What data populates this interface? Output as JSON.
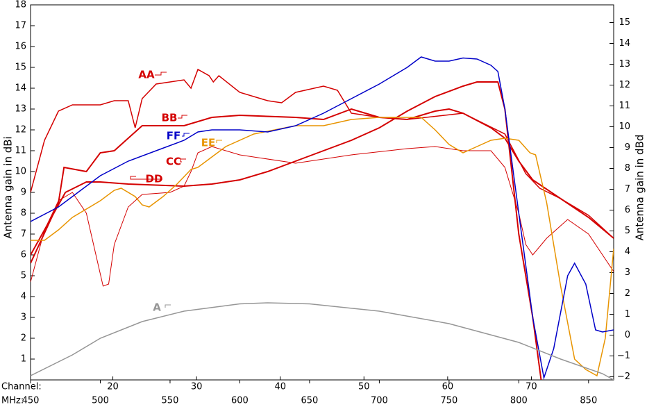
{
  "chart_data": {
    "type": "line",
    "y_label": "Antenna gain  in dBi",
    "y2_label": "Antenna gain  in dBd",
    "x_label": "MHz:",
    "x2_label": "Channel:",
    "xlim": [
      450,
      868
    ],
    "xticks": [
      450,
      500,
      550,
      600,
      650,
      700,
      750,
      800,
      850
    ],
    "x2ticks": [
      {
        "value": 509,
        "label": "20"
      },
      {
        "value": 569,
        "label": "30"
      },
      {
        "value": 629,
        "label": "40"
      },
      {
        "value": 689,
        "label": "50"
      },
      {
        "value": 749,
        "label": "60"
      },
      {
        "value": 809,
        "label": "70"
      }
    ],
    "ylim": [
      0,
      18
    ],
    "yticks": [
      1,
      2,
      3,
      4,
      5,
      6,
      7,
      8,
      9,
      10,
      11,
      12,
      13,
      14,
      15,
      16,
      17,
      18
    ],
    "y2lim": [
      -2.15,
      15.85
    ],
    "y2ticks": [
      {
        "value": -2,
        "label": "−2"
      },
      {
        "value": -1,
        "label": "−1"
      },
      0,
      1,
      2,
      3,
      4,
      5,
      6,
      7,
      8,
      9,
      10,
      11,
      12,
      13,
      14,
      15
    ],
    "series": [
      {
        "name": "AA",
        "color": "#d40000",
        "width": 1.5,
        "x": [
          450,
          460,
          470,
          480,
          500,
          510,
          520,
          525,
          530,
          540,
          550,
          560,
          565,
          570,
          578,
          581,
          585,
          600,
          620,
          630,
          640,
          660,
          670,
          680,
          700,
          720,
          760,
          790,
          805,
          815,
          830,
          850,
          868
        ],
        "values": [
          9.0,
          11.5,
          12.9,
          13.2,
          13.2,
          13.4,
          13.4,
          12.1,
          13.5,
          14.2,
          14.3,
          14.4,
          14.0,
          14.9,
          14.6,
          14.3,
          14.6,
          13.8,
          13.4,
          13.3,
          13.8,
          14.1,
          13.9,
          12.8,
          12.6,
          12.5,
          12.8,
          11.8,
          9.9,
          9.2,
          8.7,
          7.9,
          6.8
        ]
      },
      {
        "name": "BB",
        "color": "#d40000",
        "width": 2,
        "x": [
          450,
          470,
          474,
          490,
          500,
          510,
          520,
          530,
          550,
          560,
          580,
          600,
          640,
          660,
          680,
          700,
          720,
          740,
          750,
          760,
          780,
          790,
          800,
          810,
          830,
          850,
          868
        ],
        "values": [
          5.6,
          8.5,
          10.2,
          10.0,
          10.9,
          11.0,
          11.6,
          12.2,
          12.2,
          12.2,
          12.6,
          12.7,
          12.6,
          12.5,
          13.0,
          12.6,
          12.5,
          12.9,
          13.0,
          12.8,
          12.1,
          11.6,
          10.5,
          9.6,
          8.7,
          7.8,
          6.8
        ]
      },
      {
        "name": "CC",
        "color": "#d40000",
        "width": 1,
        "x": [
          450,
          460,
          470,
          480,
          490,
          502,
          506,
          510,
          520,
          530,
          550,
          560,
          565,
          570,
          580,
          600,
          640,
          680,
          720,
          740,
          760,
          780,
          790,
          800,
          805,
          810,
          820,
          835,
          850,
          868
        ],
        "values": [
          4.7,
          7.2,
          8.6,
          9.0,
          8.0,
          4.5,
          4.6,
          6.5,
          8.3,
          8.9,
          9.0,
          9.3,
          10.0,
          10.9,
          11.2,
          10.8,
          10.4,
          10.8,
          11.1,
          11.2,
          11.0,
          11.0,
          10.2,
          8.0,
          6.5,
          6.0,
          6.8,
          7.7,
          7.0,
          5.2
        ]
      },
      {
        "name": "DD",
        "color": "#d40000",
        "width": 2,
        "x": [
          450,
          475,
          490,
          500,
          520,
          560,
          580,
          600,
          620,
          640,
          660,
          680,
          700,
          720,
          740,
          760,
          770,
          785,
          790,
          800,
          810,
          816
        ],
        "values": [
          6.0,
          9.0,
          9.5,
          9.5,
          9.4,
          9.3,
          9.4,
          9.6,
          10.0,
          10.5,
          11.0,
          11.5,
          12.1,
          12.9,
          13.6,
          14.1,
          14.3,
          14.3,
          13.0,
          7.0,
          3.0,
          0.0
        ]
      },
      {
        "name": "EE",
        "color": "#e89400",
        "width": 1.5,
        "x": [
          450,
          460,
          470,
          480,
          500,
          510,
          515,
          525,
          530,
          535,
          545,
          555,
          565,
          570,
          580,
          590,
          610,
          640,
          660,
          680,
          700,
          730,
          740,
          750,
          760,
          770,
          780,
          790,
          800,
          808,
          812,
          820,
          830,
          840,
          848,
          856,
          862,
          868
        ],
        "values": [
          6.7,
          6.7,
          7.2,
          7.8,
          8.6,
          9.1,
          9.2,
          8.8,
          8.4,
          8.3,
          8.8,
          9.4,
          10.1,
          10.2,
          10.7,
          11.2,
          11.8,
          12.2,
          12.2,
          12.5,
          12.6,
          12.6,
          12.0,
          11.3,
          10.9,
          11.2,
          11.5,
          11.6,
          11.5,
          10.9,
          10.8,
          8.5,
          4.5,
          1.0,
          0.5,
          0.2,
          2.0,
          6.3
        ]
      },
      {
        "name": "FF",
        "color": "#0000c8",
        "width": 1.5,
        "x": [
          450,
          470,
          480,
          500,
          520,
          540,
          560,
          570,
          580,
          600,
          620,
          640,
          660,
          680,
          700,
          710,
          720,
          730,
          740,
          750,
          760,
          770,
          780,
          785,
          790,
          800,
          810,
          818,
          825,
          835,
          840,
          848,
          855,
          860,
          868
        ],
        "values": [
          7.6,
          8.3,
          8.8,
          9.8,
          10.5,
          11.0,
          11.5,
          11.9,
          12.0,
          12.0,
          11.9,
          12.2,
          12.8,
          13.5,
          14.2,
          14.6,
          15.0,
          15.5,
          15.3,
          15.3,
          15.45,
          15.4,
          15.1,
          14.8,
          13.0,
          8.0,
          3.0,
          0.1,
          1.5,
          5.0,
          5.6,
          4.6,
          2.4,
          2.3,
          2.4
        ]
      },
      {
        "name": "A",
        "color": "#969696",
        "width": 1.5,
        "x": [
          450,
          480,
          500,
          530,
          560,
          600,
          620,
          650,
          700,
          750,
          800,
          830,
          860,
          868
        ],
        "values": [
          0.2,
          1.2,
          2.0,
          2.8,
          3.3,
          3.65,
          3.7,
          3.65,
          3.3,
          2.7,
          1.8,
          1.0,
          0.3,
          0.0
        ]
      }
    ]
  }
}
